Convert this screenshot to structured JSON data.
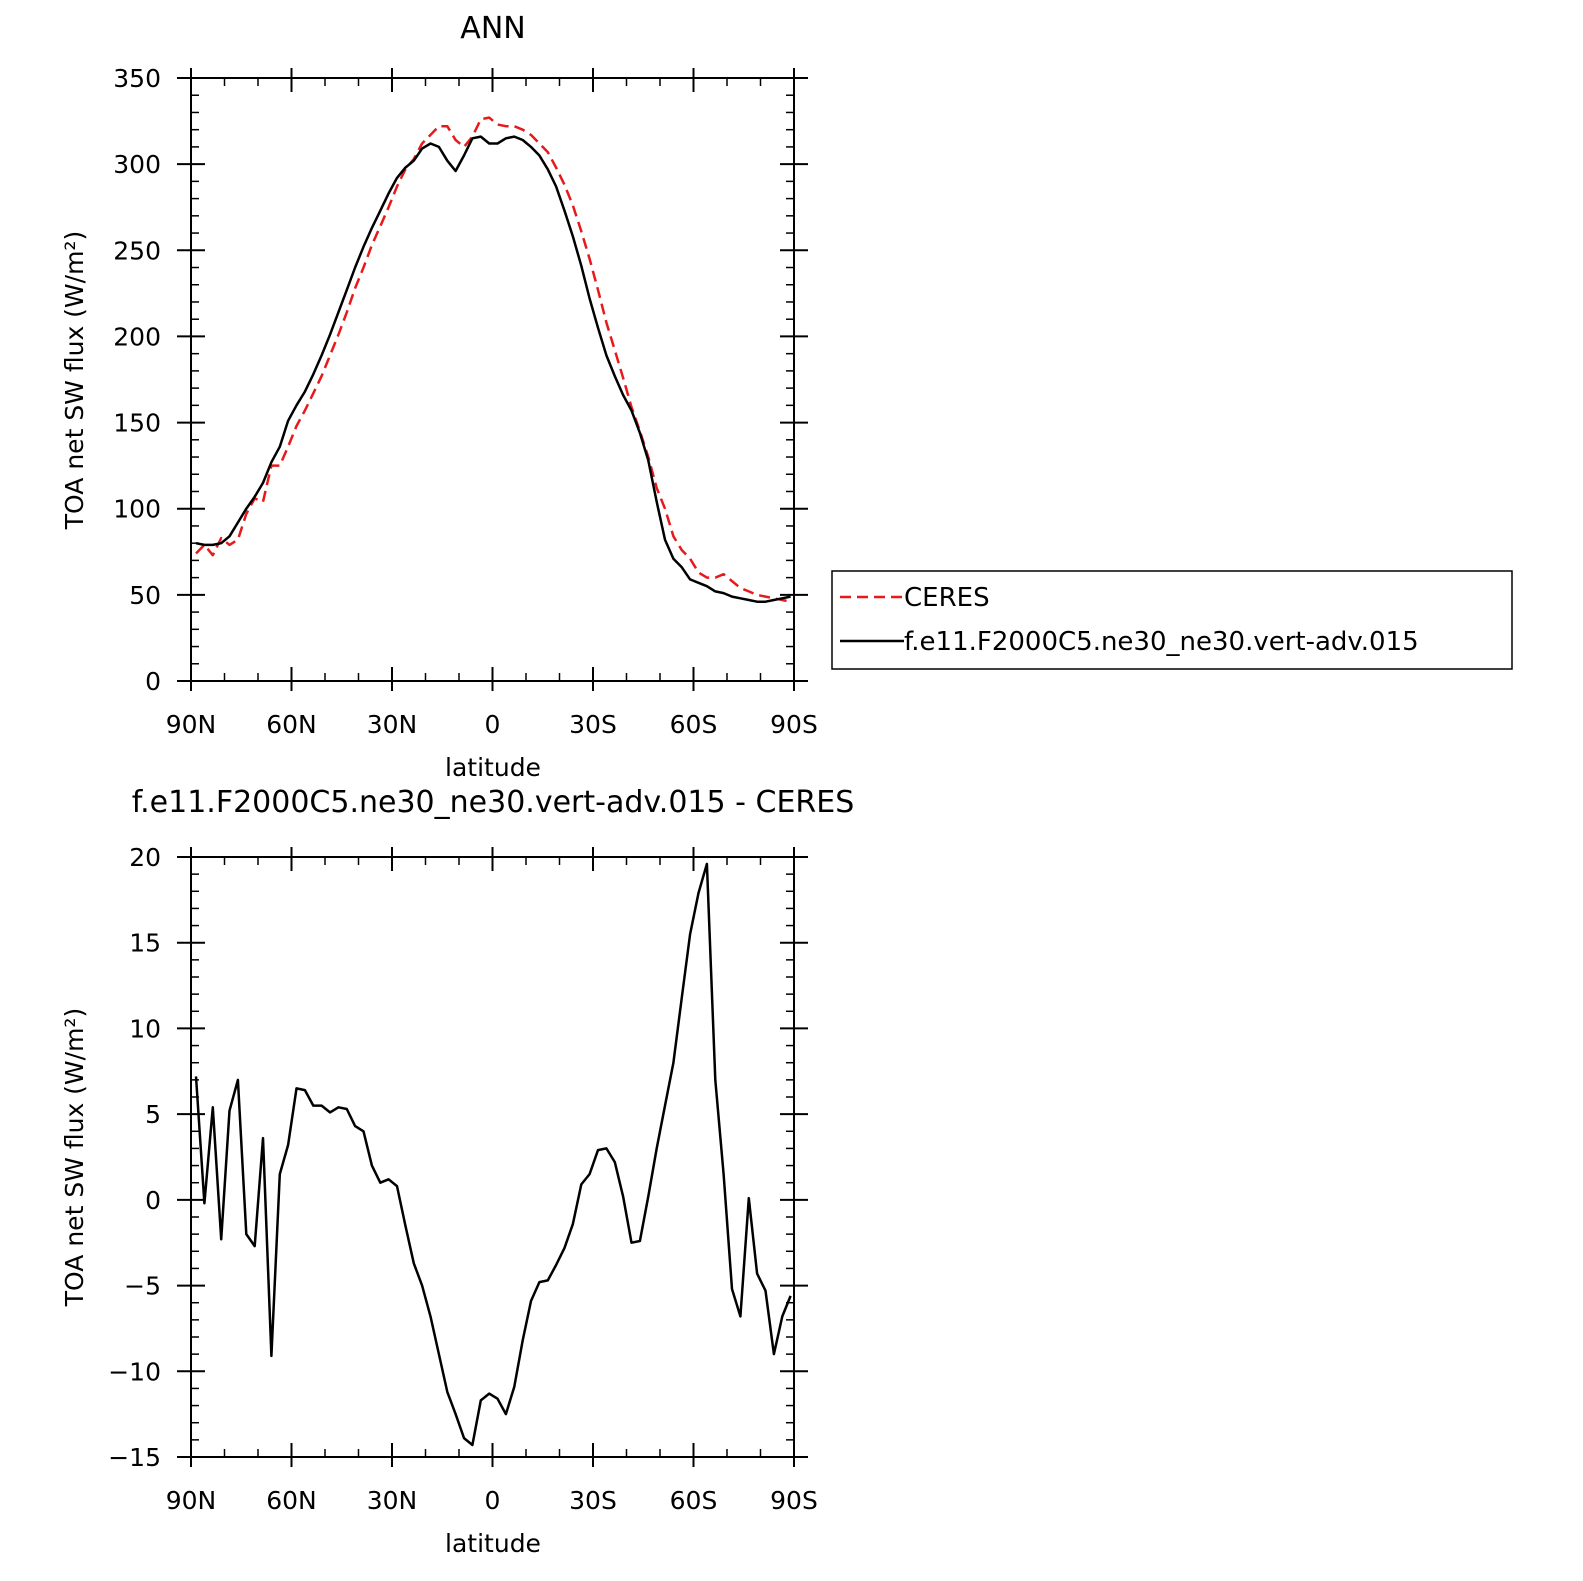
{
  "chart_data": [
    {
      "type": "line",
      "title": "ANN",
      "xlabel": "latitude",
      "ylabel": "TOA net SW flux (W/m²)",
      "xlim": [
        90,
        -90
      ],
      "ylim": [
        0,
        350
      ],
      "xticks": [
        90,
        60,
        30,
        0,
        -30,
        -60,
        -90
      ],
      "xtick_labels": [
        "90N",
        "60N",
        "30N",
        "0",
        "30S",
        "60S",
        "90S"
      ],
      "yticks": [
        0,
        50,
        100,
        150,
        200,
        250,
        300,
        350
      ],
      "ytick_labels": [
        "0",
        "50",
        "100",
        "150",
        "200",
        "250",
        "300",
        "350"
      ],
      "legend": "right",
      "series": [
        {
          "name": "CERES",
          "color": "#e8191b",
          "dash": "dashed",
          "x": [
            88.5,
            86,
            83.5,
            81,
            78.5,
            76,
            73.5,
            71,
            68.5,
            66,
            63.5,
            61,
            58.5,
            56,
            53.5,
            51,
            48.5,
            46,
            43.5,
            41,
            38.5,
            36,
            33.5,
            31,
            28.5,
            26,
            23.5,
            21,
            18.5,
            16,
            13.5,
            11,
            8.5,
            6,
            3.5,
            1,
            -1.5,
            -4,
            -6.5,
            -9,
            -11.5,
            -14,
            -16.5,
            -19,
            -21.5,
            -24,
            -26.5,
            -29,
            -31.5,
            -34,
            -36.5,
            -39,
            -41.5,
            -44,
            -46.5,
            -49,
            -51.5,
            -54,
            -56.5,
            -59,
            -61.5,
            -64,
            -66.5,
            -69,
            -71.5,
            -74,
            -76.5,
            -79,
            -81.5,
            -84,
            -86.5,
            -89
          ],
          "y": [
            74,
            79,
            73,
            83,
            79,
            82,
            97,
            106,
            104,
            125,
            125,
            136,
            148,
            157,
            167,
            177,
            189,
            201,
            214,
            228,
            240,
            253,
            264,
            275,
            287,
            297,
            303,
            312,
            317,
            322,
            322,
            314,
            310,
            316,
            326,
            327,
            323,
            322,
            322,
            320,
            317,
            312,
            307,
            298,
            288,
            276,
            261,
            245,
            227,
            208,
            192,
            176,
            159,
            145,
            130,
            112,
            100,
            84,
            76,
            71,
            63,
            60,
            60,
            62,
            58,
            54,
            52,
            50,
            49,
            48,
            47,
            46
          ]
        },
        {
          "name": "f.e11.F2000C5.ne30_ne30.vert-adv.015",
          "color": "#000000",
          "dash": "solid",
          "x": [
            88.5,
            86,
            83.5,
            81,
            78.5,
            76,
            73.5,
            71,
            68.5,
            66,
            63.5,
            61,
            58.5,
            56,
            53.5,
            51,
            48.5,
            46,
            43.5,
            41,
            38.5,
            36,
            33.5,
            31,
            28.5,
            26,
            23.5,
            21,
            18.5,
            16,
            13.5,
            11,
            8.5,
            6,
            3.5,
            1,
            -1.5,
            -4,
            -6.5,
            -9,
            -11.5,
            -14,
            -16.5,
            -19,
            -21.5,
            -24,
            -26.5,
            -29,
            -31.5,
            -34,
            -36.5,
            -39,
            -41.5,
            -44,
            -46.5,
            -49,
            -51.5,
            -54,
            -56.5,
            -59,
            -61.5,
            -64,
            -66.5,
            -69,
            -71.5,
            -74,
            -76.5,
            -79,
            -81.5,
            -84,
            -86.5,
            -89
          ],
          "y": [
            80,
            79,
            79,
            80,
            84,
            92,
            100,
            107,
            115,
            127,
            136,
            151,
            160,
            168,
            178,
            189,
            201,
            214,
            227,
            240,
            252,
            263,
            273,
            283,
            292,
            298,
            302,
            309,
            312,
            310,
            302,
            296,
            305,
            315,
            316,
            312,
            312,
            315,
            316,
            314,
            310,
            305,
            297,
            287,
            273,
            258,
            241,
            222,
            205,
            189,
            177,
            166,
            157,
            144,
            128,
            104,
            82,
            71,
            66,
            59,
            57,
            55,
            52,
            51,
            49,
            48,
            47,
            46,
            46,
            47,
            48,
            49
          ]
        }
      ]
    },
    {
      "type": "line",
      "title": "f.e11.F2000C5.ne30_ne30.vert-adv.015 - CERES",
      "xlabel": "latitude",
      "ylabel": "TOA net SW flux (W/m²)",
      "xlim": [
        90,
        -90
      ],
      "ylim": [
        -15,
        20
      ],
      "xticks": [
        90,
        60,
        30,
        0,
        -30,
        -60,
        -90
      ],
      "xtick_labels": [
        "90N",
        "60N",
        "30N",
        "0",
        "30S",
        "60S",
        "90S"
      ],
      "yticks": [
        -15,
        -10,
        -5,
        0,
        5,
        10,
        15,
        20
      ],
      "ytick_labels": [
        "−15",
        "−10",
        "−5",
        "0",
        "5",
        "10",
        "15",
        "20"
      ],
      "series": [
        {
          "color": "#000000",
          "dash": "solid",
          "x": [
            88.5,
            86,
            83.5,
            81,
            78.5,
            76,
            73.5,
            71,
            68.5,
            66,
            63.5,
            61,
            58.5,
            56,
            53.5,
            51,
            48.5,
            46,
            43.5,
            41,
            38.5,
            36,
            33.5,
            31,
            28.5,
            26,
            23.5,
            21,
            18.5,
            16,
            13.5,
            11,
            8.5,
            6,
            3.5,
            1,
            -1.5,
            -4,
            -6.5,
            -9,
            -11.5,
            -14,
            -16.5,
            -19,
            -21.5,
            -24,
            -26.5,
            -29,
            -31.5,
            -34,
            -36.5,
            -39,
            -41.5,
            -44,
            -46.5,
            -49,
            -51.5,
            -54,
            -56.5,
            -59,
            -61.5,
            -64,
            -66.5,
            -69,
            -71.5,
            -74,
            -76.5,
            -79,
            -81.5,
            -84,
            -86.5,
            -89
          ],
          "y": [
            7.2,
            -0.2,
            5.4,
            -2.3,
            5.2,
            7.0,
            -2.0,
            -2.7,
            3.6,
            -9.1,
            1.5,
            3.2,
            6.5,
            6.4,
            5.5,
            5.5,
            5.1,
            5.4,
            5.3,
            4.3,
            4.0,
            2.0,
            1.0,
            1.2,
            0.8,
            -1.5,
            -3.7,
            -5.0,
            -6.8,
            -9.0,
            -11.2,
            -12.5,
            -13.9,
            -14.3,
            -11.7,
            -11.3,
            -11.6,
            -12.5,
            -10.9,
            -8.2,
            -5.9,
            -4.8,
            -4.7,
            -3.8,
            -2.8,
            -1.4,
            0.9,
            1.5,
            2.9,
            3.0,
            2.2,
            0.2,
            -2.5,
            -2.4,
            0.2,
            3.0,
            5.5,
            8.0,
            11.8,
            15.5,
            17.9,
            19.6,
            7.0,
            1.5,
            -5.2,
            -6.8,
            0.1,
            -4.3,
            -5.3,
            -9.0,
            -6.8,
            -5.6
          ]
        }
      ]
    }
  ]
}
